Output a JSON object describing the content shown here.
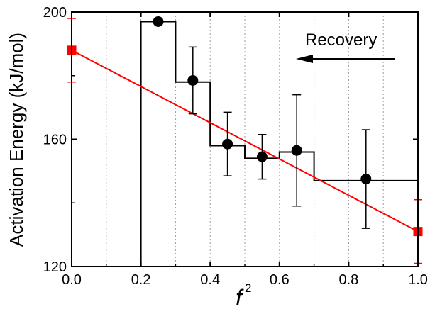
{
  "chart_data": {
    "type": "scatter",
    "xlabel": "f",
    "xlabel_superscript": "2",
    "ylabel": "Activation Energy (kJ/mol)",
    "xlim": [
      0.0,
      1.0
    ],
    "ylim": [
      120,
      200
    ],
    "x_ticks": [
      "0.0",
      "0.2",
      "0.4",
      "0.6",
      "0.8",
      "1.0"
    ],
    "y_ticks": [
      "120",
      "160",
      "200"
    ],
    "grid": "vertical dotted lines every 0.1",
    "annotation": {
      "text": "Recovery",
      "arrow": "left"
    },
    "step_histogram": {
      "bins": [
        [
          0.2,
          0.3,
          197
        ],
        [
          0.3,
          0.4,
          178
        ],
        [
          0.4,
          0.5,
          158
        ],
        [
          0.5,
          0.6,
          154
        ],
        [
          0.6,
          0.7,
          156
        ],
        [
          0.7,
          1.0,
          147
        ]
      ],
      "start_drop": [
        0.2,
        120
      ],
      "color": "#000000"
    },
    "series": [
      {
        "marker": "circle",
        "color": "#000000",
        "points": [
          {
            "x": 0.25,
            "y": 197,
            "err": 0
          },
          {
            "x": 0.35,
            "y": 178.5,
            "err": 10.5
          },
          {
            "x": 0.45,
            "y": 158.5,
            "err": 10
          },
          {
            "x": 0.55,
            "y": 154.5,
            "err": 7
          },
          {
            "x": 0.65,
            "y": 156.5,
            "err": 17.5
          },
          {
            "x": 0.85,
            "y": 147.5,
            "err": 15.5
          }
        ]
      },
      {
        "marker": "square",
        "color": "#ff0000",
        "points": [
          {
            "x": 0.0,
            "y": 188,
            "err": 10
          },
          {
            "x": 1.0,
            "y": 131,
            "err": 10
          }
        ]
      }
    ],
    "fit_line": {
      "x": [
        0.0,
        1.0
      ],
      "y": [
        188,
        131
      ],
      "color": "#ff0000"
    }
  }
}
